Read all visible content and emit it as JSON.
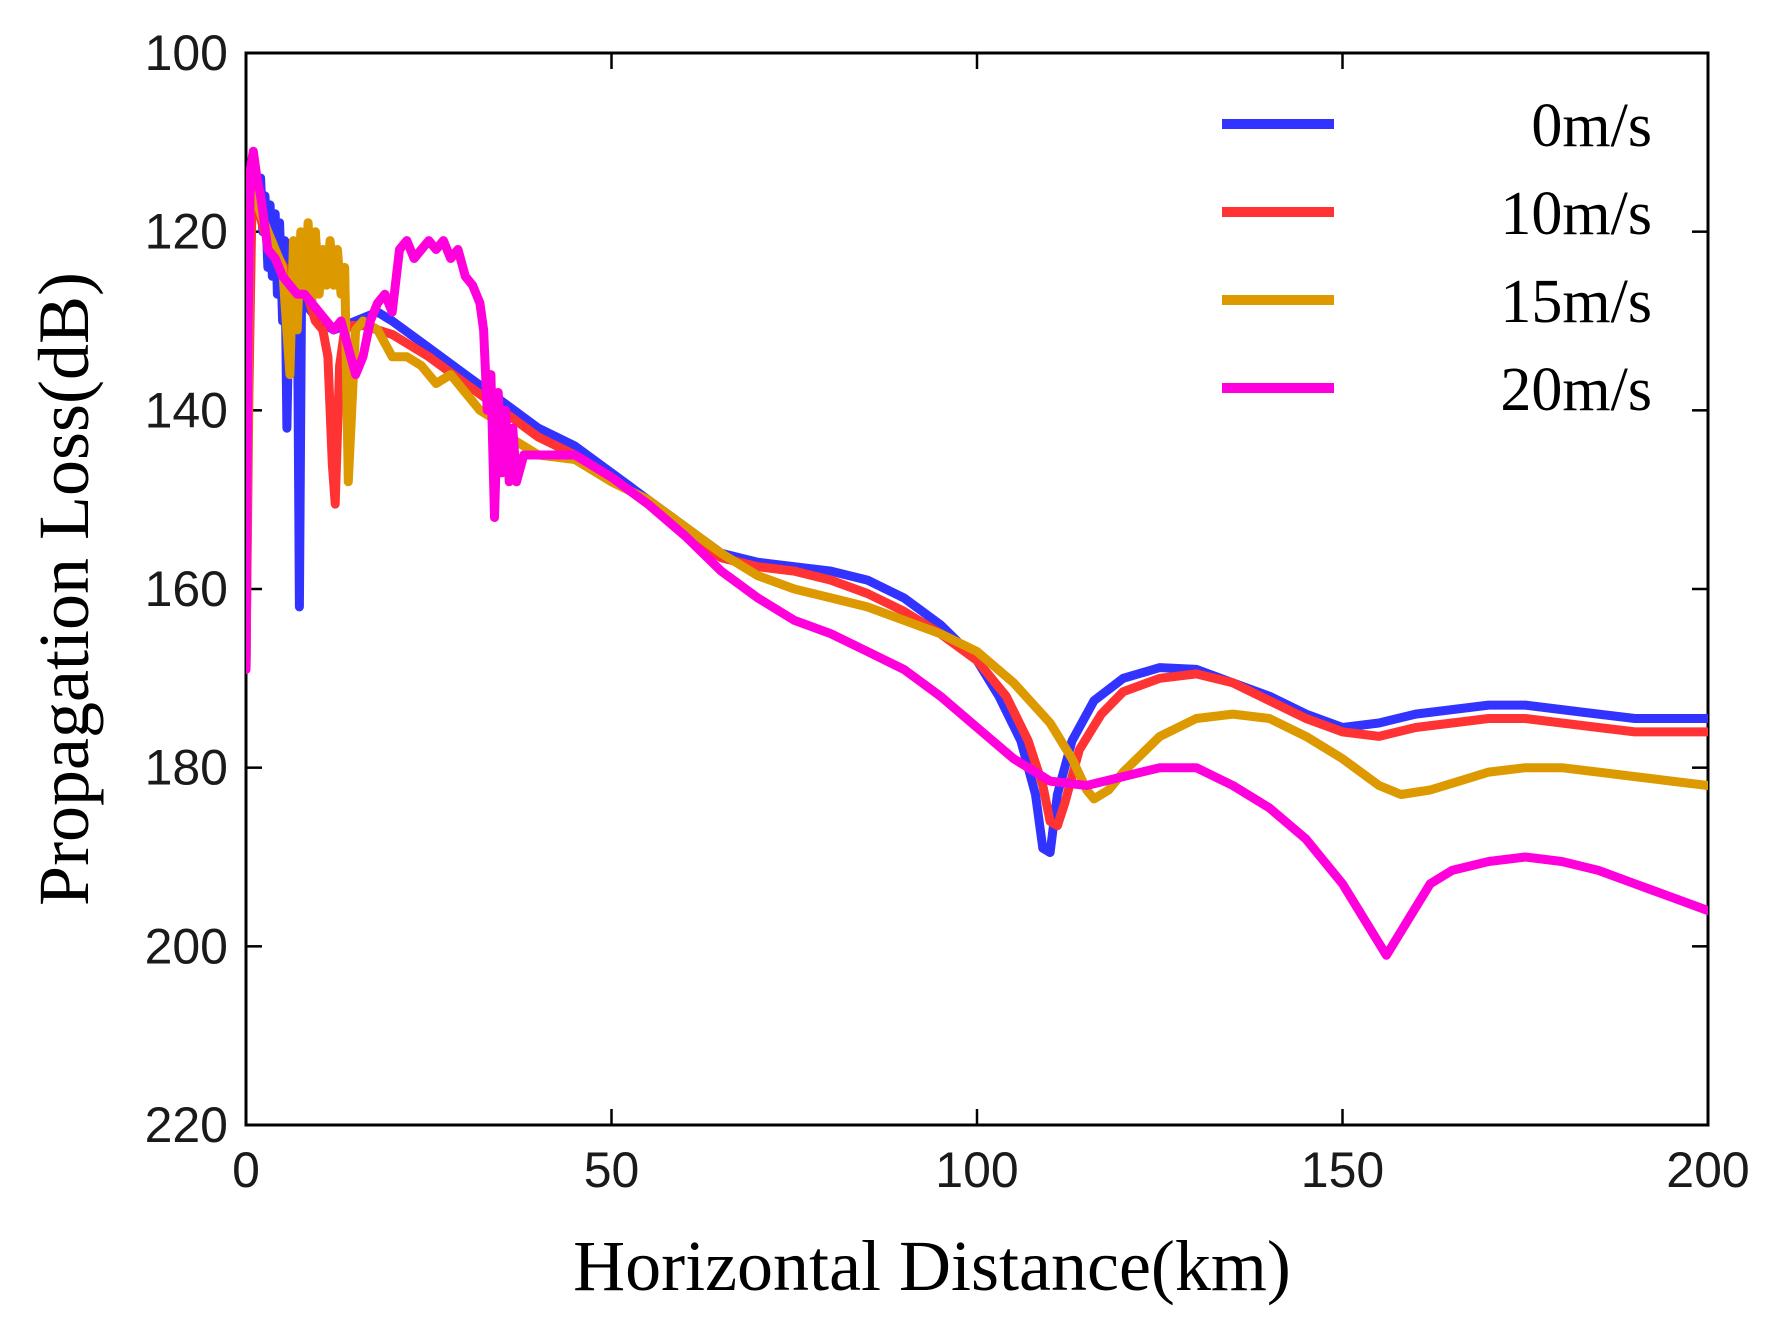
{
  "chart_data": {
    "type": "line",
    "title": "",
    "xlabel": "Horizontal Distance(km)",
    "ylabel": "Propagation Loss(dB)",
    "xlim": [
      0,
      200
    ],
    "ylim": [
      100,
      220
    ],
    "y_reversed": true,
    "grid": false,
    "legend_position": "top-right",
    "xticks": [
      0,
      50,
      100,
      150,
      200
    ],
    "xtick_labels": [
      "0",
      "50",
      "100",
      "150",
      "200"
    ],
    "yticks": [
      100,
      120,
      140,
      160,
      180,
      200,
      220
    ],
    "ytick_labels": [
      "100",
      "120",
      "140",
      "160",
      "180",
      "200",
      "220"
    ],
    "series": [
      {
        "name": "0m/s",
        "color": "#3333ff",
        "x": [
          0,
          0.3,
          0.6,
          1,
          1.5,
          2,
          2.3,
          2.6,
          3,
          3.3,
          3.6,
          4,
          4.3,
          4.6,
          5,
          5.3,
          5.6,
          6,
          6.5,
          7,
          7.3,
          7.6,
          8,
          9,
          10,
          12,
          15,
          18,
          20,
          25,
          30,
          35,
          40,
          45,
          50,
          55,
          60,
          65,
          70,
          75,
          80,
          85,
          90,
          95,
          100,
          103,
          106,
          108,
          109,
          110,
          111,
          113,
          116,
          120,
          125,
          130,
          135,
          140,
          145,
          150,
          155,
          160,
          165,
          170,
          175,
          180,
          185,
          190,
          195,
          200
        ],
        "y": [
          169,
          140,
          115,
          113,
          115,
          114,
          120,
          116,
          124,
          117,
          125,
          118,
          127,
          119,
          130,
          121,
          142,
          123,
          125,
          123,
          162,
          126,
          128,
          129,
          130,
          131,
          130,
          129,
          130,
          133,
          136,
          139,
          142,
          144,
          147,
          150,
          153,
          156,
          157,
          157.5,
          158,
          159,
          161,
          164,
          168,
          172,
          177,
          183,
          189,
          189.5,
          183,
          177,
          172.5,
          170,
          168.8,
          169,
          170.5,
          172,
          174,
          175.5,
          175,
          174,
          173.5,
          173,
          173,
          173.5,
          174,
          174.5,
          174.5,
          174.5
        ]
      },
      {
        "name": "10m/s",
        "color": "#ff3333",
        "x": [
          0,
          0.4,
          0.8,
          1.5,
          2.5,
          3.5,
          4.5,
          6,
          8,
          9.5,
          10.5,
          11.2,
          11.8,
          12.2,
          12.8,
          13.5,
          14.5,
          16,
          18,
          20,
          25,
          30,
          35,
          40,
          45,
          50,
          55,
          60,
          65,
          70,
          75,
          80,
          85,
          90,
          95,
          100,
          104,
          107,
          109,
          110,
          111,
          112,
          114,
          117,
          120,
          125,
          130,
          135,
          140,
          145,
          150,
          155,
          160,
          165,
          170,
          175,
          180,
          185,
          190,
          195,
          200
        ],
        "y": [
          169,
          138,
          118,
          117,
          120,
          121,
          123,
          125,
          126,
          130,
          131,
          134,
          146,
          150.5,
          135,
          131,
          130.5,
          130.5,
          131,
          131.5,
          134,
          137,
          140,
          143,
          145,
          147.5,
          150.5,
          154,
          156.5,
          157.5,
          158,
          159,
          160.5,
          162.5,
          165,
          168,
          172,
          177,
          182,
          186,
          186.5,
          184,
          178,
          174,
          171.5,
          170,
          169.5,
          170.5,
          172.5,
          174.5,
          176,
          176.5,
          175.5,
          175,
          174.5,
          174.5,
          175,
          175.5,
          176,
          176,
          176
        ]
      },
      {
        "name": "15m/s",
        "color": "#dd9900",
        "x": [
          0,
          0.5,
          1,
          2,
          3,
          4,
          5,
          5.5,
          6,
          6.5,
          7,
          7.5,
          8,
          8.5,
          9,
          9.5,
          10,
          10.5,
          11,
          11.5,
          12,
          12.5,
          13,
          13.5,
          14,
          15,
          16,
          18,
          20,
          22,
          24,
          26,
          28,
          30,
          32,
          34,
          36,
          38,
          40,
          45,
          50,
          55,
          60,
          65,
          70,
          75,
          80,
          85,
          90,
          95,
          100,
          105,
          110,
          113,
          115,
          116,
          118,
          120,
          125,
          130,
          135,
          140,
          145,
          150,
          155,
          158,
          162,
          166,
          170,
          175,
          180,
          185,
          190,
          195,
          200
        ],
        "y": [
          169,
          118,
          115,
          118,
          120,
          122,
          124,
          130,
          136,
          121,
          131,
          120,
          127,
          119,
          128,
          120,
          127,
          122,
          126,
          121,
          126,
          122,
          127,
          124,
          148,
          131,
          130,
          131,
          134,
          134,
          135,
          137,
          136,
          138,
          140,
          141,
          143,
          144,
          145,
          145.5,
          148,
          150,
          153,
          156,
          158.5,
          160,
          161,
          162,
          163.5,
          165,
          167,
          170.5,
          175,
          179,
          182.5,
          183.5,
          182.5,
          180.5,
          176.5,
          174.5,
          174,
          174.5,
          176.5,
          179,
          182,
          183,
          182.5,
          181.5,
          180.5,
          180,
          180,
          180.5,
          181,
          181.5,
          182
        ]
      },
      {
        "name": "20m/s",
        "color": "#ff00dd",
        "x": [
          0,
          0.3,
          0.6,
          1,
          1.5,
          2,
          2.5,
          3,
          4,
          5,
          6,
          7,
          8,
          9,
          10,
          11,
          12,
          13,
          14,
          15,
          16,
          17,
          18,
          19,
          20,
          21,
          22,
          23,
          24,
          25,
          26,
          27,
          28,
          29,
          30,
          31,
          32,
          32.5,
          33,
          33.5,
          34,
          34.5,
          35,
          35.5,
          36,
          36.5,
          37,
          38,
          40,
          42,
          45,
          50,
          55,
          60,
          65,
          70,
          75,
          80,
          85,
          90,
          95,
          100,
          105,
          110,
          115,
          120,
          125,
          130,
          135,
          140,
          145,
          150,
          153,
          156,
          159,
          162,
          165,
          170,
          175,
          180,
          185,
          190,
          195,
          200
        ],
        "y": [
          169,
          130,
          113,
          111,
          114,
          116,
          119,
          122,
          123,
          125,
          126,
          127,
          127,
          128,
          129,
          130,
          131,
          130,
          133,
          136,
          134,
          130,
          128,
          127,
          129,
          122,
          121,
          123,
          122,
          121,
          122,
          121,
          123,
          122,
          125,
          126,
          128,
          131,
          140,
          136,
          152,
          138,
          147,
          140,
          148,
          142,
          148,
          145,
          145,
          145,
          145,
          147.5,
          150.5,
          154,
          158,
          161,
          163.5,
          165,
          167,
          169,
          172,
          175.5,
          179,
          181.5,
          182,
          181,
          180,
          180,
          182,
          184.5,
          188,
          193,
          197,
          201,
          197,
          193,
          191.5,
          190.5,
          190,
          190.5,
          191.5,
          193,
          194.5,
          196
        ]
      }
    ]
  }
}
